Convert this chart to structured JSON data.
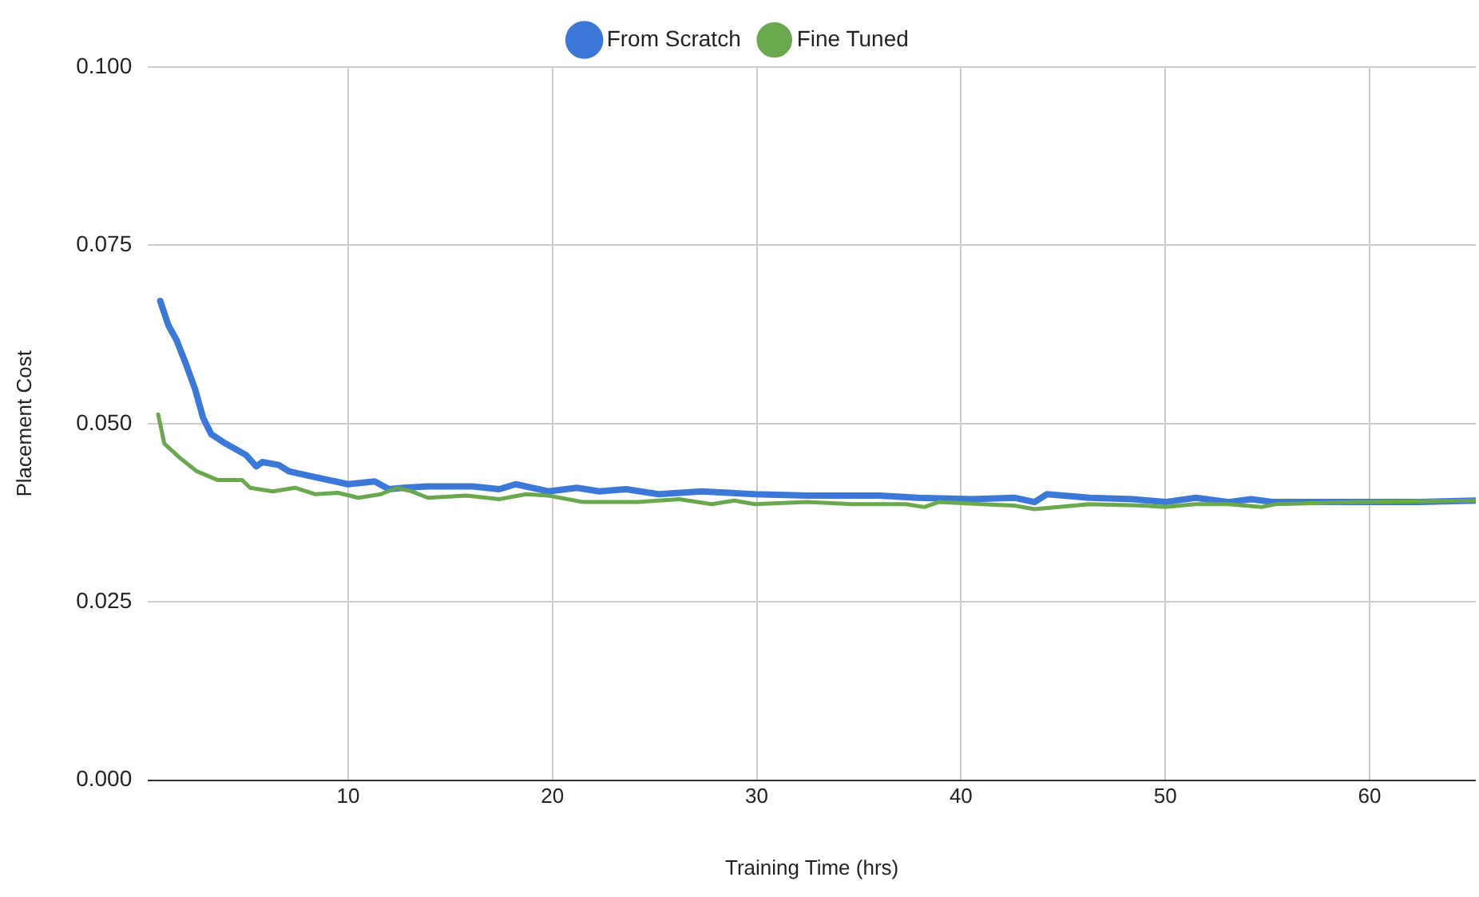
{
  "chart_data": {
    "type": "line",
    "xlabel": "Training Time (hrs)",
    "ylabel": "Placement Cost",
    "xlim": [
      0.2,
      65.2
    ],
    "xticks": [
      10,
      20,
      30,
      40,
      50,
      60
    ],
    "ylim": [
      0,
      0.1
    ],
    "yticks": [
      {
        "value": 0,
        "label": "0.000"
      },
      {
        "value": 0.025,
        "label": "0.025"
      },
      {
        "value": 0.05,
        "label": "0.050"
      },
      {
        "value": 0.075,
        "label": "0.075"
      },
      {
        "value": 0.1,
        "label": "0.100"
      }
    ],
    "grid": true,
    "legend": "top",
    "marker": "none",
    "line_style": "solid",
    "series": [
      {
        "name": "From Scratch",
        "color": "#3c78d8",
        "x": [
          0.8,
          1.2,
          1.6,
          2.0,
          2.5,
          2.9,
          3.3,
          4.0,
          5.0,
          5.5,
          5.8,
          6.6,
          7.1,
          8.2,
          10.0,
          11.3,
          12.0,
          12.7,
          13.9,
          16.1,
          17.4,
          18.2,
          19.8,
          21.2,
          22.3,
          23.6,
          25.2,
          27.3,
          29.9,
          32.5,
          36.0,
          37.9,
          40.5,
          42.6,
          43.6,
          44.2,
          46.3,
          48.4,
          50.0,
          51.5,
          53.1,
          54.2,
          55.3,
          59.5,
          62.2,
          65.2
        ],
        "values": [
          0.0672,
          0.0638,
          0.0617,
          0.0588,
          0.0549,
          0.0508,
          0.0485,
          0.0472,
          0.0456,
          0.044,
          0.0446,
          0.0442,
          0.0433,
          0.0426,
          0.0415,
          0.0419,
          0.0408,
          0.041,
          0.0412,
          0.0412,
          0.0408,
          0.0415,
          0.0405,
          0.041,
          0.0405,
          0.0408,
          0.0401,
          0.0405,
          0.0401,
          0.0399,
          0.0399,
          0.0396,
          0.0394,
          0.0396,
          0.039,
          0.0401,
          0.0396,
          0.0394,
          0.039,
          0.0396,
          0.039,
          0.0394,
          0.039,
          0.039,
          0.039,
          0.0392
        ]
      },
      {
        "name": "Fine Tuned",
        "color": "#6aa84f",
        "x": [
          0.7,
          1.0,
          1.8,
          2.6,
          3.6,
          4.8,
          5.2,
          6.3,
          7.4,
          8.4,
          9.5,
          10.5,
          11.6,
          12.4,
          13.1,
          13.9,
          15.8,
          17.4,
          18.7,
          19.8,
          21.5,
          24.2,
          26.2,
          27.8,
          28.9,
          29.9,
          32.5,
          34.7,
          37.3,
          38.2,
          38.9,
          41.0,
          42.6,
          43.6,
          46.3,
          48.9,
          50.0,
          51.5,
          53.1,
          54.7,
          55.4,
          59.5,
          65.2
        ],
        "values": [
          0.0513,
          0.0472,
          0.0451,
          0.0433,
          0.0421,
          0.0421,
          0.041,
          0.0405,
          0.041,
          0.0401,
          0.0403,
          0.0396,
          0.0401,
          0.041,
          0.0405,
          0.0396,
          0.0399,
          0.0394,
          0.0401,
          0.0399,
          0.039,
          0.039,
          0.0394,
          0.0387,
          0.0392,
          0.0387,
          0.039,
          0.0387,
          0.0387,
          0.0383,
          0.039,
          0.0387,
          0.0385,
          0.038,
          0.0387,
          0.0385,
          0.0383,
          0.0387,
          0.0387,
          0.0383,
          0.0387,
          0.039,
          0.0392
        ]
      }
    ]
  }
}
